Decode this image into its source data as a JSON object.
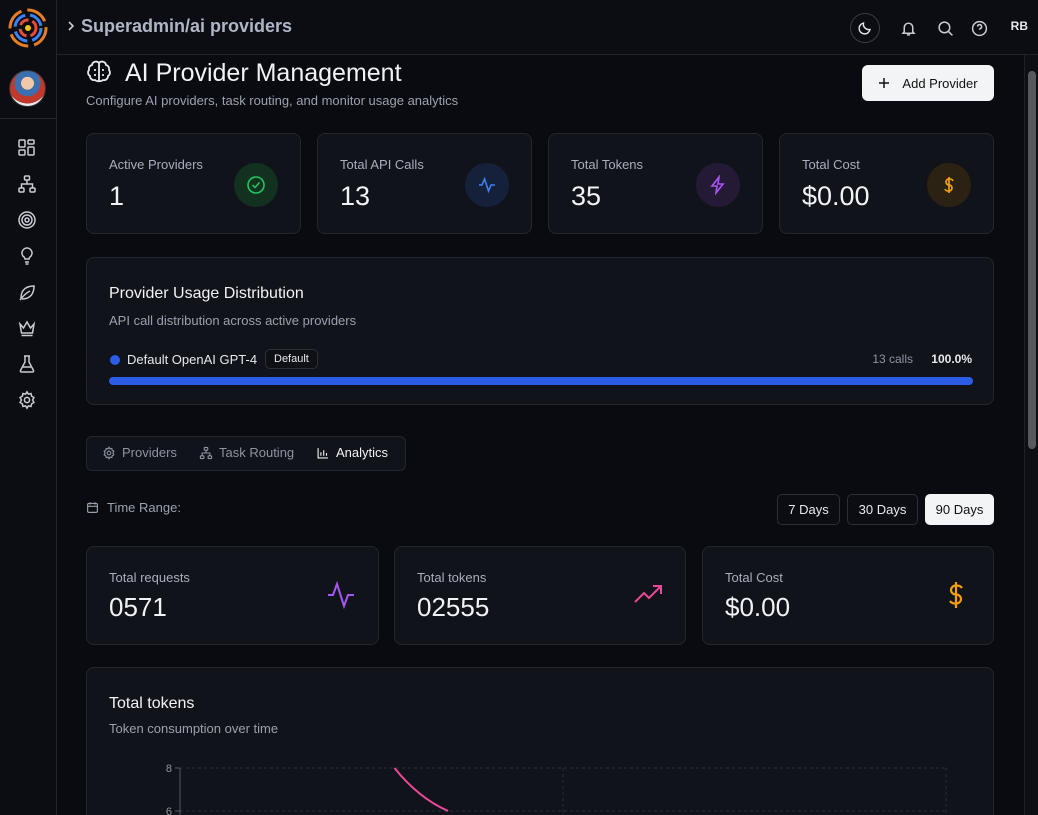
{
  "topbar": {
    "breadcrumb": "Superadmin/ai providers",
    "user_initials": "RB"
  },
  "page": {
    "title": "AI Provider Management",
    "subtitle": "Configure AI providers, task routing, and monitor usage analytics",
    "add_button": "Add Provider"
  },
  "stats": [
    {
      "label": "Active Providers",
      "value": "1",
      "icon": "check-circle-icon",
      "color": "#22c55e"
    },
    {
      "label": "Total API Calls",
      "value": "13",
      "icon": "activity-icon",
      "color": "#3b82f6"
    },
    {
      "label": "Total Tokens",
      "value": "35",
      "icon": "zap-icon",
      "color": "#a855f7"
    },
    {
      "label": "Total Cost",
      "value": "$0.00",
      "icon": "dollar-icon",
      "color": "#f59e0b"
    }
  ],
  "distribution": {
    "title": "Provider Usage Distribution",
    "subtitle": "API call distribution across active providers",
    "providers": [
      {
        "name": "Default OpenAI GPT-4",
        "badge": "Default",
        "calls": "13 calls",
        "percent": "100.0%",
        "share": 1.0
      }
    ]
  },
  "tabs": [
    {
      "label": "Providers",
      "icon": "gear-icon"
    },
    {
      "label": "Task Routing",
      "icon": "network-icon"
    },
    {
      "label": "Analytics",
      "icon": "bar-chart-icon",
      "active": true
    }
  ],
  "time_range": {
    "label": "Time Range:",
    "options": [
      "7 Days",
      "30 Days",
      "90 Days"
    ],
    "selected": "90 Days"
  },
  "metrics": [
    {
      "label": "Total requests",
      "value": "0571",
      "icon": "activity-icon",
      "color": "#a855f7"
    },
    {
      "label": "Total tokens",
      "value": "02555",
      "icon": "trending-up-icon",
      "color": "#ec4899"
    },
    {
      "label": "Total Cost",
      "value": "$0.00",
      "icon": "dollar-icon",
      "color": "#f59e0b"
    }
  ],
  "chart_card": {
    "title": "Total tokens",
    "subtitle": "Token consumption over time"
  },
  "chart_data": {
    "type": "line",
    "title": "Total tokens",
    "y_ticks": [
      "8",
      "6"
    ],
    "ylim": [
      0,
      8
    ],
    "grid": true,
    "series": [
      {
        "color": "#ec4899",
        "points": [
          [
            0.28,
            8.0
          ],
          [
            0.35,
            6.0
          ]
        ]
      }
    ]
  }
}
